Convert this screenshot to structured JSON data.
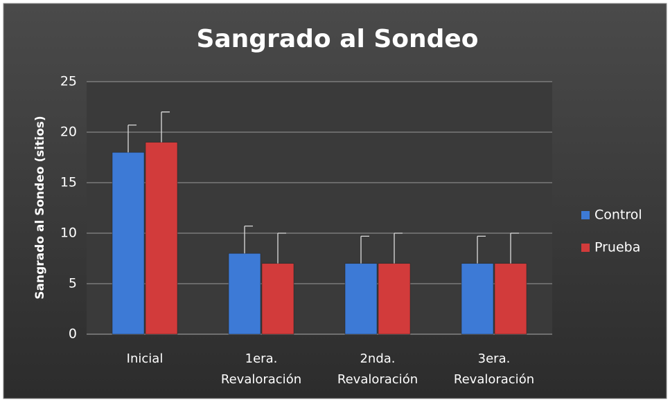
{
  "chart_data": {
    "type": "bar",
    "title": "Sangrado al Sondeo",
    "y_label": "Sangrado al Sondeo (sitios)",
    "categories": [
      "Inicial",
      "1era. Revaloración",
      "2nda. Revaloración",
      "3era. Revaloración"
    ],
    "series": [
      {
        "name": "Control",
        "color": "#3d7ad6",
        "values": [
          18,
          8,
          7,
          7
        ],
        "errors": [
          2.7,
          2.7,
          2.7,
          2.7
        ]
      },
      {
        "name": "Prueba",
        "color": "#d23b3b",
        "values": [
          19,
          7,
          7,
          7
        ],
        "errors": [
          3,
          3,
          3,
          3
        ]
      }
    ],
    "ylim": [
      0,
      25
    ],
    "yticks": [
      0,
      5,
      10,
      15,
      20,
      25
    ],
    "grid": true,
    "legend": "right"
  }
}
